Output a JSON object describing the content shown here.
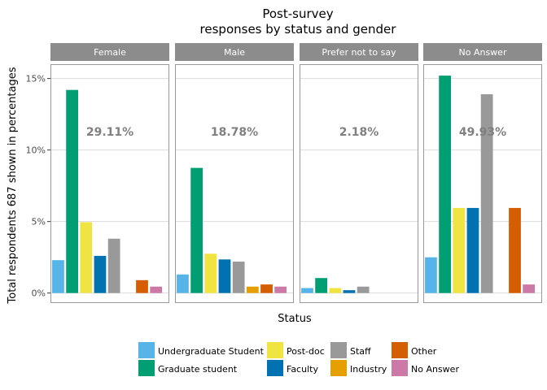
{
  "chart_data": {
    "type": "bar",
    "title": "Post-survey",
    "subtitle": "responses by status and gender",
    "xlabel": "Status",
    "ylabel": "Total respondents 687 shown in percentages",
    "ylim": [
      -0.7,
      16.0
    ],
    "y_ticks": [
      0,
      5,
      10,
      15
    ],
    "y_tick_labels": [
      "0%",
      "5%",
      "10%",
      "15%"
    ],
    "grid": true,
    "legend_position": "bottom",
    "categories": [
      "Undergraduate Student",
      "Graduate student",
      "Post-doc",
      "Faculty",
      "Staff",
      "Industry",
      "Other",
      "No Answer"
    ],
    "colors": [
      "#56B4E9",
      "#009E73",
      "#F0E442",
      "#0072B2",
      "#999999",
      "#E69F00",
      "#D55E00",
      "#CC79A7"
    ],
    "panels": [
      {
        "name": "Female",
        "percent_label": "29.11%",
        "values": [
          2.3,
          14.2,
          4.95,
          2.6,
          3.8,
          0,
          0.9,
          0.45
        ]
      },
      {
        "name": "Male",
        "percent_label": "18.78%",
        "values": [
          1.3,
          8.75,
          2.75,
          2.35,
          2.2,
          0.45,
          0.6,
          0.45
        ]
      },
      {
        "name": "Prefer not to say",
        "percent_label": "2.18%",
        "values": [
          0.35,
          1.05,
          0.35,
          0.2,
          0.45,
          0,
          0,
          0
        ]
      },
      {
        "name": "No Answer",
        "percent_label": "49.93%",
        "values": [
          2.5,
          15.2,
          5.95,
          5.95,
          13.9,
          0,
          5.95,
          0.6
        ]
      }
    ],
    "legend_entries": [
      "Undergraduate Student",
      "Graduate student",
      "Post-doc",
      "Faculty",
      "Staff",
      "Industry",
      "Other",
      "No Answer"
    ]
  }
}
